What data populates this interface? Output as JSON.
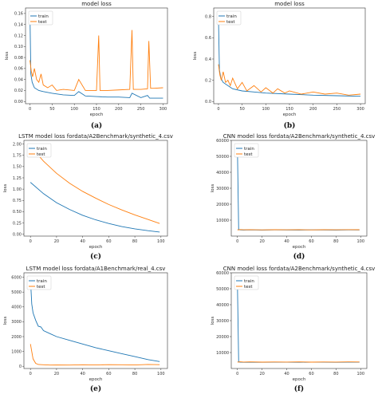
{
  "colors": {
    "train": "#1f77b4",
    "test": "#ff7f0e"
  },
  "chart_data": [
    {
      "id": "a",
      "panel_label": "(a)",
      "type": "line",
      "title": "model loss",
      "xlabel": "epoch",
      "ylabel": "loss",
      "xlim": [
        -10,
        310
      ],
      "ylim": [
        -0.004,
        0.17
      ],
      "xticks": [
        0,
        50,
        100,
        150,
        200,
        250,
        300
      ],
      "yticks": [
        0.0,
        0.02,
        0.04,
        0.06,
        0.08,
        0.1,
        0.12,
        0.14,
        0.16
      ],
      "ytick_labels": [
        "0.00",
        "0.02",
        "0.04",
        "0.06",
        "0.08",
        "0.10",
        "0.12",
        "0.14",
        "0.16"
      ],
      "legend": "top-left",
      "series": [
        {
          "name": "train",
          "color": "#1f77b4",
          "x": [
            0,
            2,
            5,
            10,
            20,
            30,
            50,
            75,
            100,
            110,
            125,
            150,
            175,
            200,
            225,
            230,
            250,
            265,
            270,
            280,
            300
          ],
          "y": [
            0.16,
            0.05,
            0.035,
            0.025,
            0.02,
            0.018,
            0.015,
            0.012,
            0.011,
            0.018,
            0.01,
            0.009,
            0.008,
            0.008,
            0.007,
            0.015,
            0.007,
            0.011,
            0.006,
            0.006,
            0.006
          ]
        },
        {
          "name": "test",
          "color": "#ff7f0e",
          "x": [
            0,
            3,
            6,
            10,
            15,
            20,
            25,
            30,
            40,
            50,
            60,
            75,
            100,
            110,
            125,
            150,
            155,
            158,
            175,
            200,
            225,
            230,
            233,
            250,
            265,
            268,
            272,
            280,
            300
          ],
          "y": [
            0.075,
            0.055,
            0.045,
            0.06,
            0.04,
            0.035,
            0.05,
            0.03,
            0.025,
            0.03,
            0.02,
            0.022,
            0.02,
            0.04,
            0.02,
            0.02,
            0.12,
            0.02,
            0.02,
            0.021,
            0.022,
            0.13,
            0.022,
            0.022,
            0.023,
            0.11,
            0.024,
            0.024,
            0.025
          ]
        }
      ]
    },
    {
      "id": "b",
      "panel_label": "(b)",
      "type": "line",
      "title": "model loss",
      "xlabel": "epoch",
      "ylabel": "loss",
      "xlim": [
        -10,
        310
      ],
      "ylim": [
        -0.02,
        0.88
      ],
      "xticks": [
        0,
        50,
        100,
        150,
        200,
        250,
        300
      ],
      "yticks": [
        0.0,
        0.2,
        0.4,
        0.6,
        0.8
      ],
      "ytick_labels": [
        "0.0",
        "0.2",
        "0.4",
        "0.6",
        "0.8"
      ],
      "legend": "top-left",
      "series": [
        {
          "name": "train",
          "color": "#1f77b4",
          "x": [
            0,
            2,
            5,
            10,
            20,
            30,
            50,
            75,
            100,
            150,
            200,
            250,
            300
          ],
          "y": [
            0.8,
            0.3,
            0.22,
            0.18,
            0.15,
            0.12,
            0.1,
            0.09,
            0.08,
            0.07,
            0.06,
            0.055,
            0.05
          ]
        },
        {
          "name": "test",
          "color": "#ff7f0e",
          "x": [
            0,
            3,
            6,
            10,
            15,
            20,
            25,
            30,
            40,
            50,
            60,
            75,
            90,
            100,
            115,
            125,
            140,
            150,
            175,
            200,
            225,
            250,
            275,
            300
          ],
          "y": [
            0.35,
            0.25,
            0.2,
            0.28,
            0.18,
            0.2,
            0.15,
            0.22,
            0.12,
            0.18,
            0.1,
            0.15,
            0.09,
            0.13,
            0.08,
            0.12,
            0.08,
            0.1,
            0.07,
            0.09,
            0.07,
            0.08,
            0.06,
            0.07
          ]
        }
      ]
    },
    {
      "id": "c",
      "panel_label": "(c)",
      "type": "line",
      "title": "LSTM model loss fordata/A2Benchmark/synthetic_4.csv",
      "xlabel": "epoch",
      "ylabel": "loss",
      "xlim": [
        -5,
        105
      ],
      "ylim": [
        -0.04,
        2.08
      ],
      "xticks": [
        0,
        20,
        40,
        60,
        80,
        100
      ],
      "yticks": [
        0.0,
        0.25,
        0.5,
        0.75,
        1.0,
        1.25,
        1.5,
        1.75,
        2.0
      ],
      "ytick_labels": [
        "0.00",
        "0.25",
        "0.50",
        "0.75",
        "1.00",
        "1.25",
        "1.50",
        "1.75",
        "2.00"
      ],
      "legend": "top-left",
      "series": [
        {
          "name": "train",
          "color": "#1f77b4",
          "x": [
            0,
            10,
            20,
            30,
            40,
            50,
            60,
            70,
            80,
            90,
            99
          ],
          "y": [
            1.15,
            0.9,
            0.7,
            0.55,
            0.42,
            0.32,
            0.24,
            0.17,
            0.12,
            0.08,
            0.05
          ]
        },
        {
          "name": "test",
          "color": "#ff7f0e",
          "x": [
            0,
            10,
            20,
            30,
            40,
            50,
            60,
            70,
            80,
            90,
            99
          ],
          "y": [
            1.95,
            1.62,
            1.35,
            1.13,
            0.95,
            0.8,
            0.66,
            0.54,
            0.43,
            0.33,
            0.24
          ]
        }
      ]
    },
    {
      "id": "d",
      "panel_label": "(d)",
      "type": "line",
      "title": "CNN model loss fordata/A2Benchmark/synthetic_4.csv",
      "xlabel": "epoch",
      "ylabel": "loss",
      "xlim": [
        -5,
        105
      ],
      "ylim": [
        0,
        60000
      ],
      "xticks": [
        0,
        20,
        40,
        60,
        80,
        100
      ],
      "yticks": [
        10000,
        20000,
        30000,
        40000,
        50000,
        60000
      ],
      "ytick_labels": [
        "10000",
        "20000",
        "30000",
        "40000",
        "50000",
        "60000"
      ],
      "legend": "top-left",
      "series": [
        {
          "name": "train",
          "color": "#1f77b4",
          "x": [
            0,
            1,
            2,
            5,
            10,
            20,
            30,
            40,
            50,
            60,
            70,
            80,
            90,
            99
          ],
          "y": [
            55000,
            4200,
            3900,
            3800,
            3900,
            3800,
            3900,
            3850,
            3800,
            3900,
            3850,
            3800,
            3900,
            3850
          ]
        },
        {
          "name": "test",
          "color": "#ff7f0e",
          "x": [
            0,
            1,
            2,
            5,
            10,
            20,
            30,
            40,
            50,
            60,
            70,
            80,
            90,
            99
          ],
          "y": [
            4000,
            3900,
            4100,
            3950,
            4050,
            3900,
            4000,
            3950,
            4050,
            3900,
            4000,
            3950,
            4050,
            4000
          ]
        }
      ]
    },
    {
      "id": "e",
      "panel_label": "(e)",
      "type": "line",
      "title": "LSTM model loss fordata/A1Benchmark/real_4.csv",
      "xlabel": "epoch",
      "ylabel": "loss",
      "xlim": [
        -5,
        105
      ],
      "ylim": [
        -150,
        6300
      ],
      "xticks": [
        0,
        20,
        40,
        60,
        80,
        100
      ],
      "yticks": [
        0,
        1000,
        2000,
        3000,
        4000,
        5000,
        6000
      ],
      "ytick_labels": [
        "0",
        "1000",
        "2000",
        "3000",
        "4000",
        "5000",
        "6000"
      ],
      "legend": "top-left",
      "series": [
        {
          "name": "train",
          "color": "#1f77b4",
          "x": [
            0,
            1,
            2,
            4,
            6,
            8,
            10,
            15,
            20,
            30,
            40,
            50,
            60,
            70,
            80,
            90,
            99
          ],
          "y": [
            5900,
            4200,
            3600,
            3100,
            2700,
            2650,
            2400,
            2200,
            2000,
            1750,
            1500,
            1250,
            1050,
            850,
            650,
            450,
            320
          ]
        },
        {
          "name": "test",
          "color": "#ff7f0e",
          "x": [
            0,
            2,
            4,
            6,
            10,
            15,
            20,
            30,
            40,
            50,
            60,
            70,
            80,
            90,
            99
          ],
          "y": [
            1500,
            500,
            200,
            120,
            100,
            80,
            90,
            80,
            100,
            90,
            110,
            100,
            90,
            120,
            110
          ]
        }
      ]
    },
    {
      "id": "f",
      "panel_label": "(f)",
      "type": "line",
      "title": "CNN model loss fordata/A2Benchmark/synthetic_4.csv",
      "xlabel": "epoch",
      "ylabel": "loss",
      "xlim": [
        -5,
        105
      ],
      "ylim": [
        0,
        60000
      ],
      "xticks": [
        0,
        20,
        40,
        60,
        80,
        100
      ],
      "yticks": [
        10000,
        20000,
        30000,
        40000,
        50000,
        60000
      ],
      "ytick_labels": [
        "10000",
        "20000",
        "30000",
        "40000",
        "50000",
        "60000"
      ],
      "legend": "top-left",
      "series": [
        {
          "name": "train",
          "color": "#1f77b4",
          "x": [
            0,
            1,
            2,
            5,
            10,
            20,
            30,
            40,
            50,
            60,
            70,
            80,
            90,
            99
          ],
          "y": [
            53000,
            4300,
            4000,
            3900,
            4000,
            3900,
            4000,
            3950,
            3900,
            4000,
            3950,
            3900,
            4000,
            3950
          ]
        },
        {
          "name": "test",
          "color": "#ff7f0e",
          "x": [
            0,
            1,
            2,
            5,
            10,
            20,
            30,
            40,
            50,
            60,
            70,
            80,
            90,
            99
          ],
          "y": [
            4100,
            4000,
            4200,
            4050,
            4150,
            4000,
            4100,
            4050,
            4150,
            4000,
            4100,
            4050,
            4150,
            4100
          ]
        }
      ]
    }
  ]
}
